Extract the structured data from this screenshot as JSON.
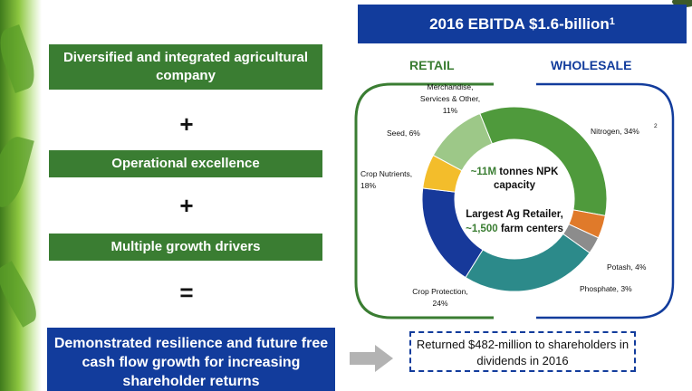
{
  "left": {
    "box1": "Diversified and integrated agricultural company",
    "plus1": "+",
    "box2": "Operational excellence",
    "plus2": "+",
    "box3": "Multiple growth drivers",
    "equals": "=",
    "result": "Demonstrated resilience and future free cash flow growth for increasing shareholder returns"
  },
  "right": {
    "header": "2016 EBITDA $1.6-billion",
    "header_footnote": "1",
    "retail_label": "RETAIL",
    "wholesale_label": "WHOLESALE",
    "center": {
      "line1_highlight": "~11M",
      "line1_rest": " tonnes NPK",
      "line2": "capacity",
      "line3": "Largest Ag Retailer,",
      "line4_highlight": "~1,500",
      "line4_rest": " farm centers"
    },
    "returned": "Returned $482-million to shareholders in dividends in 2016"
  },
  "colors": {
    "green_box": "#3a7d32",
    "blue_box": "#123c9c",
    "retail_bracket": "#3a7d32",
    "wholesale_bracket": "#123c9c"
  },
  "chart_data": {
    "type": "pie",
    "style": "donut",
    "title": "2016 EBITDA $1.6-billion",
    "slices": [
      {
        "label": "Nitrogen, 34%",
        "value": 34,
        "segment": "WHOLESALE",
        "color": "#4f9a3c",
        "footnote": "2"
      },
      {
        "label": "Potash, 4%",
        "value": 4,
        "segment": "WHOLESALE",
        "color": "#e07a2a"
      },
      {
        "label": "Phosphate, 3%",
        "value": 3,
        "segment": "WHOLESALE",
        "color": "#8c8c8c"
      },
      {
        "label": "Crop Protection, 24%",
        "value": 24,
        "segment": "RETAIL",
        "color": "#2c8a8a"
      },
      {
        "label": "Crop Nutrients, 18%",
        "value": 18,
        "segment": "RETAIL",
        "color": "#17399a"
      },
      {
        "label": "Seed, 6%",
        "value": 6,
        "segment": "RETAIL",
        "color": "#f3bd2b"
      },
      {
        "label": "Merchandise, Services & Other, 11%",
        "value": 11,
        "segment": "RETAIL",
        "color": "#9dc888"
      }
    ]
  }
}
